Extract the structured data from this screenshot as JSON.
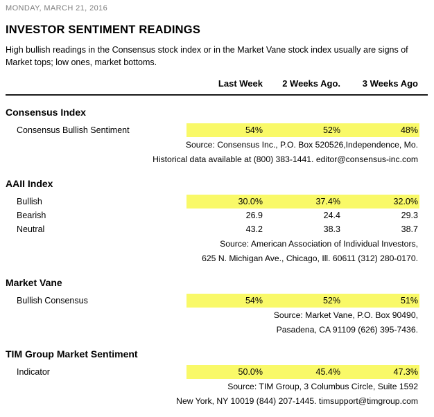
{
  "theme": {
    "highlight_color": "#f9f968",
    "rule_color": "#1a1a1a",
    "date_color": "#7d7d7d"
  },
  "header": {
    "date": "MONDAY, MARCH 21, 2016",
    "title": "INVESTOR SENTIMENT READINGS",
    "description": "High bullish readings in the Consensus stock index or in the Market Vane stock index usually are signs of Market tops; low ones, market bottoms."
  },
  "table": {
    "columns": [
      "Last Week",
      "2 Weeks Ago.",
      "3 Weeks Ago"
    ],
    "sections": [
      {
        "name": "Consensus Index",
        "rows": [
          {
            "label": "Consensus Bullish Sentiment",
            "values": [
              "54%",
              "52%",
              "48%"
            ],
            "highlighted": true
          }
        ],
        "source_lines": [
          "Source: Consensus Inc., P.O. Box 520526,Independence, Mo.",
          "Historical data available at (800) 383-1441. editor@consensus-inc.com"
        ]
      },
      {
        "name": "AAII Index",
        "rows": [
          {
            "label": "Bullish",
            "values": [
              "30.0%",
              "37.4%",
              "32.0%"
            ],
            "highlighted": true
          },
          {
            "label": "Bearish",
            "values": [
              "26.9",
              "24.4",
              "29.3"
            ],
            "highlighted": false
          },
          {
            "label": "Neutral",
            "values": [
              "43.2",
              "38.3",
              "38.7"
            ],
            "highlighted": false
          }
        ],
        "source_lines": [
          "Source: American Association of Individual Investors,",
          "625 N. Michigan Ave., Chicago, Ill. 60611 (312) 280-0170."
        ]
      },
      {
        "name": "Market Vane",
        "rows": [
          {
            "label": "Bullish Consensus",
            "values": [
              "54%",
              "52%",
              "51%"
            ],
            "highlighted": true
          }
        ],
        "source_lines": [
          "Source: Market Vane, P.O. Box 90490,",
          "Pasadena, CA 91109 (626) 395-7436."
        ]
      },
      {
        "name": "TIM Group Market Sentiment",
        "rows": [
          {
            "label": "Indicator",
            "values": [
              "50.0%",
              "45.4%",
              "47.3%"
            ],
            "highlighted": true
          }
        ],
        "source_lines": [
          "Source: TIM Group, 3 Columbus Circle, Suite 1592",
          "New York, NY 10019 (844) 207-1445. timsupport@timgroup.com"
        ]
      }
    ]
  }
}
